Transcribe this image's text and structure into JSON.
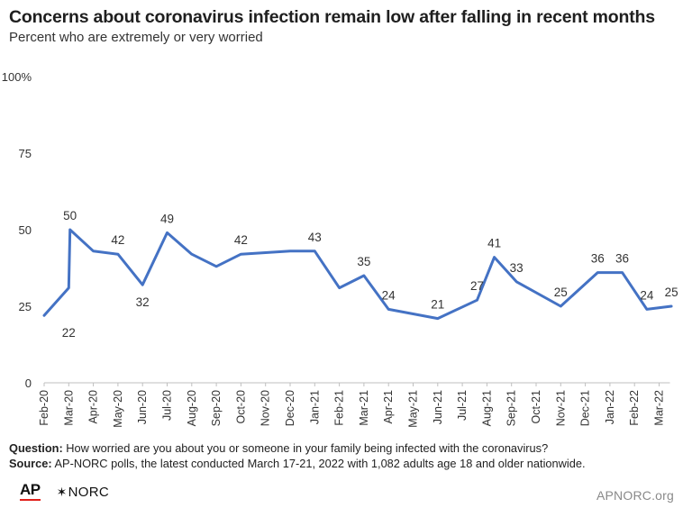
{
  "header": {
    "title": "Concerns about coronavirus infection remain low after falling in recent months",
    "subtitle": "Percent who are extremely or very worried"
  },
  "footer": {
    "question_label": "Question:",
    "question_text": "How worried are you about you or someone in your family being infected with the coronavirus?",
    "source_label": "Source:",
    "source_text": "AP-NORC polls, the latest conducted March 17-21, 2022 with 1,082 adults age 18 and older nationwide."
  },
  "logos": {
    "ap": "AP",
    "norc": "NORC",
    "norc_icon": "asterisk-star-icon"
  },
  "site": "APNORC.org",
  "colors": {
    "line": "#4472c4",
    "axis": "#bfbfbf",
    "text": "#333333"
  },
  "chart_data": {
    "type": "line",
    "title": "Concerns about coronavirus infection remain low after falling in recent months",
    "subtitle": "Percent who are extremely or very worried",
    "ylim": [
      0,
      100
    ],
    "yticks": [
      "0",
      "25",
      "50",
      "75",
      "100%"
    ],
    "ytick_values": [
      0,
      25,
      50,
      75,
      100
    ],
    "grid": false,
    "categories": [
      "Feb-20",
      "Mar-20",
      "Apr-20",
      "May-20",
      "Jun-20",
      "Jul-20",
      "Aug-20",
      "Sep-20",
      "Oct-20",
      "Nov-20",
      "Dec-20",
      "Jan-21",
      "Feb-21",
      "Mar-21",
      "Apr-21",
      "May-21",
      "Jun-21",
      "Jul-21",
      "Aug-21",
      "Sep-21",
      "Oct-21",
      "Nov-21",
      "Dec-21",
      "Jan-22",
      "Feb-22",
      "Mar-22"
    ],
    "series": [
      {
        "points": [
          {
            "x": 0.0,
            "y": 22,
            "label": "22"
          },
          {
            "x": 1.0,
            "y": 31,
            "label": null
          },
          {
            "x": 1.05,
            "y": 50,
            "label": "50"
          },
          {
            "x": 2.0,
            "y": 43,
            "label": null
          },
          {
            "x": 3.0,
            "y": 42,
            "label": "42"
          },
          {
            "x": 4.0,
            "y": 32,
            "label": "32"
          },
          {
            "x": 5.0,
            "y": 49,
            "label": "49"
          },
          {
            "x": 6.0,
            "y": 42,
            "label": null
          },
          {
            "x": 7.0,
            "y": 38,
            "label": null
          },
          {
            "x": 8.0,
            "y": 42,
            "label": "42"
          },
          {
            "x": 10.0,
            "y": 43,
            "label": null
          },
          {
            "x": 11.0,
            "y": 43,
            "label": "43"
          },
          {
            "x": 12.0,
            "y": 31,
            "label": null
          },
          {
            "x": 13.0,
            "y": 35,
            "label": "35"
          },
          {
            "x": 14.0,
            "y": 24,
            "label": "24"
          },
          {
            "x": 16.0,
            "y": 21,
            "label": "21"
          },
          {
            "x": 17.6,
            "y": 27,
            "label": "27"
          },
          {
            "x": 18.3,
            "y": 41,
            "label": "41"
          },
          {
            "x": 19.2,
            "y": 33,
            "label": "33"
          },
          {
            "x": 21.0,
            "y": 25,
            "label": "25"
          },
          {
            "x": 22.5,
            "y": 36,
            "label": "36"
          },
          {
            "x": 23.5,
            "y": 36,
            "label": "36"
          },
          {
            "x": 24.5,
            "y": 24,
            "label": "24"
          },
          {
            "x": 25.5,
            "y": 25,
            "label": "25"
          }
        ]
      }
    ],
    "data_labels": [
      {
        "text": "22",
        "x": 1.0,
        "y": 22
      },
      {
        "text": "50",
        "x": 1.05,
        "y": 50
      },
      {
        "text": "42",
        "x": 3.0,
        "y": 42
      },
      {
        "text": "32",
        "x": 4.0,
        "y": 32
      },
      {
        "text": "49",
        "x": 5.0,
        "y": 49
      },
      {
        "text": "42",
        "x": 8.0,
        "y": 42
      },
      {
        "text": "43",
        "x": 11.0,
        "y": 43
      },
      {
        "text": "35",
        "x": 13.0,
        "y": 35
      },
      {
        "text": "24",
        "x": 14.0,
        "y": 24
      },
      {
        "text": "21",
        "x": 16.0,
        "y": 21
      },
      {
        "text": "27",
        "x": 17.6,
        "y": 27
      },
      {
        "text": "41",
        "x": 18.3,
        "y": 41
      },
      {
        "text": "33",
        "x": 19.2,
        "y": 33
      },
      {
        "text": "25",
        "x": 21.0,
        "y": 25
      },
      {
        "text": "36",
        "x": 22.5,
        "y": 36
      },
      {
        "text": "36",
        "x": 23.5,
        "y": 36
      },
      {
        "text": "24",
        "x": 24.5,
        "y": 24
      },
      {
        "text": "25",
        "x": 25.5,
        "y": 25
      }
    ]
  }
}
